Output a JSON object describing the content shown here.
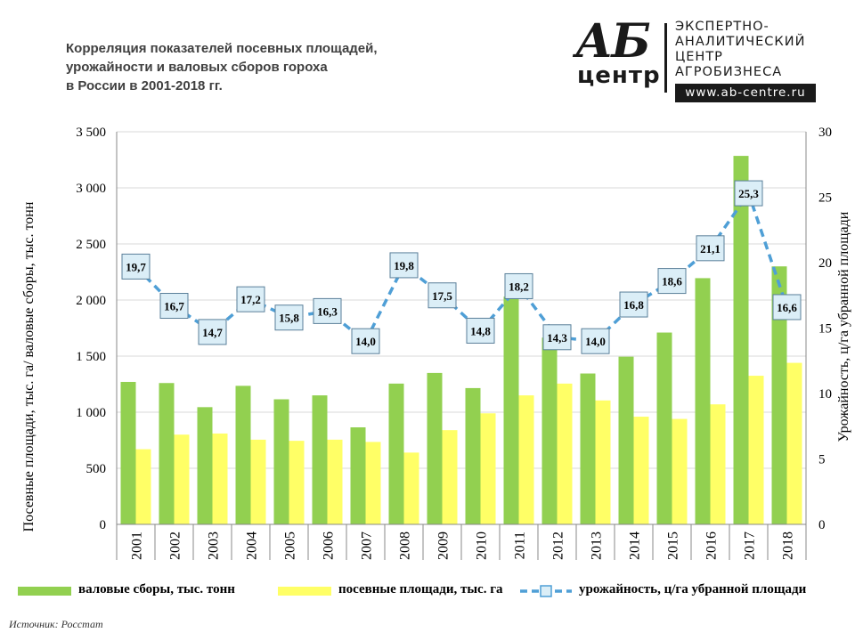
{
  "title": {
    "line1": "Корреляция показателей посевных площадей,",
    "line2": "урожайности и валовых сборов гороха",
    "line3": "в России в 2001-2018 гг."
  },
  "logo": {
    "ab": "АБ",
    "centr": "центр",
    "line1": "ЭКСПЕРТНО-",
    "line2": "АНАЛИТИЧЕСКИЙ",
    "line3": "ЦЕНТР",
    "line4": "АГРОБИЗНЕСА",
    "url": "www.ab-centre.ru"
  },
  "source": "Источник:  Росстат",
  "colors": {
    "gross": "#92d050",
    "area": "#ffff66",
    "yield_line": "#4f9fd6",
    "label_bg": "#dbeef7"
  },
  "chart_data": {
    "type": "bar",
    "categories": [
      "2001",
      "2002",
      "2003",
      "2004",
      "2005",
      "2006",
      "2007",
      "2008",
      "2009",
      "2010",
      "2011",
      "2012",
      "2013",
      "2014",
      "2015",
      "2016",
      "2017",
      "2018"
    ],
    "series": [
      {
        "name": "валовые сборы, тыс. тонн",
        "type": "bar",
        "axis": "left",
        "values": [
          1270,
          1260,
          1045,
          1235,
          1115,
          1150,
          865,
          1255,
          1350,
          1215,
          2030,
          1665,
          1345,
          1495,
          1710,
          2195,
          3285,
          2300
        ]
      },
      {
        "name": "посевные площади, тыс. га",
        "type": "bar",
        "axis": "left",
        "values": [
          670,
          800,
          810,
          755,
          745,
          755,
          735,
          640,
          840,
          990,
          1150,
          1255,
          1105,
          960,
          940,
          1070,
          1325,
          1440
        ]
      },
      {
        "name": "урожайность, ц/га убранной площади",
        "type": "line",
        "axis": "right",
        "values": [
          19.7,
          16.7,
          14.7,
          17.2,
          15.8,
          16.3,
          14.0,
          19.8,
          17.5,
          14.8,
          18.2,
          14.3,
          14.0,
          16.8,
          18.6,
          21.1,
          25.3,
          16.6
        ],
        "labels": [
          "19,7",
          "16,7",
          "14,7",
          "17,2",
          "15,8",
          "16,3",
          "14,0",
          "19,8",
          "17,5",
          "14,8",
          "18,2",
          "14,3",
          "14,0",
          "16,8",
          "18,6",
          "21,1",
          "25,3",
          "16,6"
        ]
      }
    ],
    "ylabel": "Посевные площади, тыс. га/ валовые сборы, тыс. тонн",
    "ylabel_right": "Урожайность, ц/га убранной площади",
    "ylim": [
      0,
      3500
    ],
    "ylim_right": [
      0,
      30
    ],
    "yticks": [
      0,
      500,
      1000,
      1500,
      2000,
      2500,
      3000,
      3500
    ],
    "ytick_labels": [
      "0",
      "500",
      "1 000",
      "1 500",
      "2 000",
      "2 500",
      "3 000",
      "3 500"
    ],
    "yticks_right": [
      0,
      5,
      10,
      15,
      20,
      25,
      30
    ],
    "ytick_labels_right": [
      "0",
      "5",
      "10",
      "15",
      "20",
      "25",
      "30"
    ],
    "grid": true,
    "legend_position": "bottom"
  }
}
